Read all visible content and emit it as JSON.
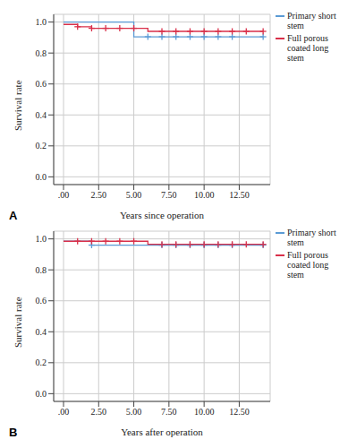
{
  "chart_data": [
    {
      "type": "line",
      "title": "A",
      "x_label": "Years since operation",
      "y_label": "Survival rate",
      "xlim": [
        -0.7,
        14.7
      ],
      "xticks": [
        {
          "value": 0,
          "label": ".00"
        },
        {
          "value": 2.5,
          "label": "2.50"
        },
        {
          "value": 5,
          "label": "5.00"
        },
        {
          "value": 7.5,
          "label": "7.50"
        },
        {
          "value": 10,
          "label": "10.00"
        },
        {
          "value": 12.5,
          "label": "12.50"
        }
      ],
      "ylim": [
        -0.05,
        1.05
      ],
      "yticks": [
        {
          "value": 0,
          "label": "0.0"
        },
        {
          "value": 0.2,
          "label": "0.2"
        },
        {
          "value": 0.4,
          "label": "0.4"
        },
        {
          "value": 0.6,
          "label": "0.6"
        },
        {
          "value": 0.8,
          "label": "0.8"
        },
        {
          "value": 1,
          "label": "1.0"
        }
      ],
      "grid": true,
      "legend": "right",
      "series": [
        {
          "name": "Primary short stem",
          "color": "#5b9bd5",
          "marker": "plus",
          "line_style": "step",
          "x": [
            0,
            5,
            14.2
          ],
          "values": [
            1.0,
            0.905,
            0.905
          ],
          "censor_x": [
            6,
            7,
            8,
            9,
            10,
            11,
            12,
            14.2
          ],
          "censor_values": [
            0.905,
            0.905,
            0.905,
            0.905,
            0.905,
            0.905,
            0.905,
            0.905
          ]
        },
        {
          "name": "Full porous coated long stem",
          "color": "#d9304a",
          "marker": "plus",
          "line_style": "step",
          "x": [
            0,
            1,
            2,
            6,
            14.2
          ],
          "values": [
            0.985,
            0.97,
            0.96,
            0.94,
            0.94
          ],
          "censor_x": [
            1,
            2,
            3,
            4,
            5,
            7,
            8,
            9,
            10,
            11,
            12,
            13,
            14.2
          ],
          "censor_values": [
            0.97,
            0.96,
            0.96,
            0.96,
            0.96,
            0.94,
            0.94,
            0.94,
            0.94,
            0.94,
            0.94,
            0.94,
            0.94
          ]
        }
      ]
    },
    {
      "type": "line",
      "title": "B",
      "x_label": "Years after operation",
      "y_label": "Survival rate",
      "xlim": [
        -0.7,
        14.7
      ],
      "xticks": [
        {
          "value": 0,
          "label": ".00"
        },
        {
          "value": 2.5,
          "label": "2.50"
        },
        {
          "value": 5,
          "label": "5.00"
        },
        {
          "value": 7.5,
          "label": "7.50"
        },
        {
          "value": 10,
          "label": "10.00"
        },
        {
          "value": 12.5,
          "label": "12.50"
        }
      ],
      "ylim": [
        -0.05,
        1.05
      ],
      "yticks": [
        {
          "value": 0,
          "label": "0.0"
        },
        {
          "value": 0.2,
          "label": "0.2"
        },
        {
          "value": 0.4,
          "label": "0.4"
        },
        {
          "value": 0.6,
          "label": "0.6"
        },
        {
          "value": 0.8,
          "label": "0.8"
        },
        {
          "value": 1,
          "label": "1.0"
        }
      ],
      "grid": true,
      "legend": "right",
      "series": [
        {
          "name": "Primary short stem",
          "color": "#5b9bd5",
          "marker": "plus",
          "line_style": "step",
          "x": [
            0,
            2,
            14.2
          ],
          "values": [
            0.985,
            0.96,
            0.96
          ],
          "censor_x": [
            2,
            7,
            8,
            9,
            10,
            11,
            12,
            14.2
          ],
          "censor_values": [
            0.96,
            0.96,
            0.96,
            0.96,
            0.96,
            0.96,
            0.96,
            0.96
          ]
        },
        {
          "name": "Full porous coated long stem",
          "color": "#d9304a",
          "marker": "plus",
          "line_style": "step",
          "x": [
            0,
            6,
            14.2
          ],
          "values": [
            0.985,
            0.965,
            0.965
          ],
          "censor_x": [
            1,
            2,
            3,
            4,
            5,
            7,
            8,
            9,
            10,
            11,
            12,
            13,
            14.2
          ],
          "censor_values": [
            0.985,
            0.985,
            0.985,
            0.985,
            0.985,
            0.965,
            0.965,
            0.965,
            0.965,
            0.965,
            0.965,
            0.965,
            0.965
          ]
        }
      ]
    }
  ]
}
